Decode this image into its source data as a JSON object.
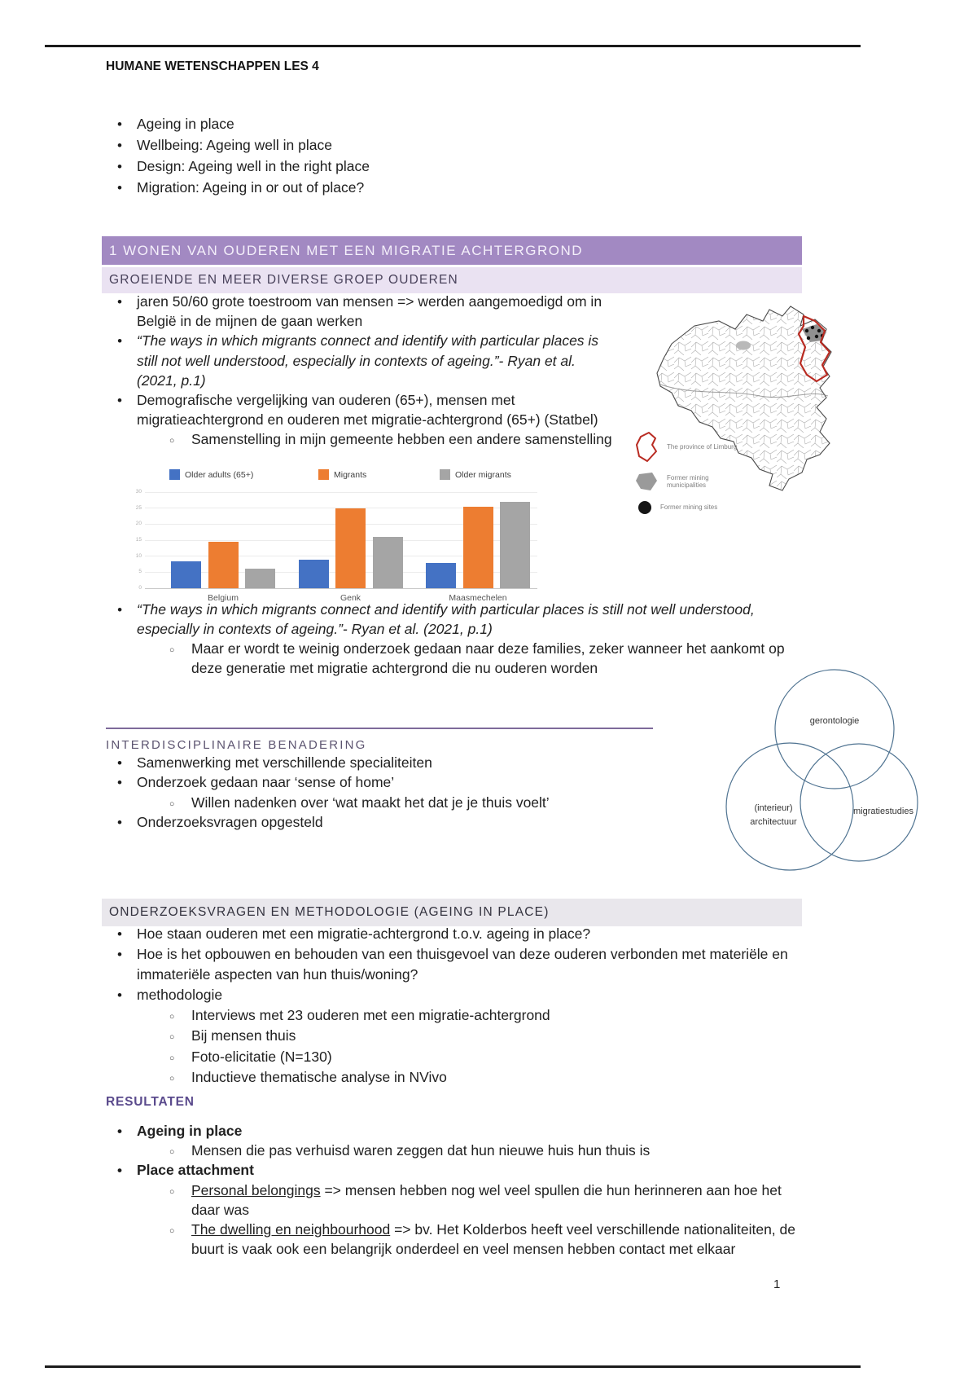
{
  "page": {
    "title": "HUMANE WETENSCHAPPEN LES 4",
    "page_number": "1"
  },
  "colors": {
    "banner_purple": "#a289c2",
    "banner_light_purple": "#eae2f2",
    "banner_gray": "#e9e7ec",
    "heading_purple": "#5a4a8c",
    "bar_blue": "#4472c4",
    "bar_orange": "#ed7d31",
    "bar_gray": "#a5a5a5",
    "map_region_red": "#b92b22"
  },
  "intro": {
    "items": [
      {
        "level": 1,
        "lines": [
          "Ageing in place"
        ]
      },
      {
        "level": 1,
        "lines": [
          "Wellbeing: Ageing well in place"
        ]
      },
      {
        "level": 1,
        "lines": [
          "Design: Ageing well in the right place"
        ]
      },
      {
        "level": 1,
        "lines": [
          "Migration: Ageing in or out of place?"
        ]
      }
    ]
  },
  "section1": {
    "banner": "1 WONEN VAN OUDEREN MET EEN MIGRATIE ACHTERGROND",
    "subbanner": "GROEIENDE EN MEER DIVERSE GROEP OUDEREN",
    "items": [
      {
        "level": 1,
        "lines": [
          "jaren 50/60 grote toestroom van mensen => werden aangemoedigd om in",
          "België in de mijnen de gaan werken"
        ]
      },
      {
        "level": 1,
        "italic": true,
        "lines": [
          "“The ways in which migrants connect and identify with particular places is",
          "still not well understood, especially in contexts of ageing.”- Ryan et al.",
          "(2021, p.1)"
        ]
      },
      {
        "level": 1,
        "lines": [
          "Demografische vergelijking van ouderen (65+), mensen met",
          "migratieachtergrond en ouderen met migratie-achtergrond (65+) (Statbel)"
        ]
      },
      {
        "level": 2,
        "lines": [
          "Samenstelling in mijn gemeente hebben een andere samenstelling"
        ]
      }
    ],
    "quote_items": [
      {
        "level": 1,
        "italic": true,
        "lines": [
          "“The ways in which migrants connect and identify with particular places is still not well understood,",
          "especially in contexts of ageing.”- Ryan et al. (2021, p.1)"
        ]
      },
      {
        "level": 2,
        "lines": [
          "Maar er wordt te weinig onderzoek gedaan naar deze families, zeker wanneer het aankomt op",
          "deze generatie met migratie achtergrond die nu ouderen worden"
        ]
      }
    ]
  },
  "chart_data": {
    "type": "bar",
    "title": "",
    "categories": [
      "Belgium",
      "Genk",
      "Maasmechelen"
    ],
    "series": [
      {
        "name": "Older adults (65+)",
        "color": "#4472c4",
        "values": [
          8.5,
          9,
          8
        ]
      },
      {
        "name": "Migrants",
        "color": "#ed7d31",
        "values": [
          14.5,
          25,
          25.5
        ]
      },
      {
        "name": "Older migrants",
        "color": "#a5a5a5",
        "values": [
          6,
          16,
          27
        ]
      }
    ],
    "ylim": [
      0,
      30
    ],
    "yticks": [
      0,
      5,
      10,
      15,
      20,
      25,
      30
    ],
    "grid": true,
    "legend_position": "top",
    "xlabel": "",
    "ylabel": ""
  },
  "map": {
    "legend": [
      {
        "icon": "red-outline",
        "label": "The province of Limburg"
      },
      {
        "icon": "gray-region",
        "label": "Former mining municipalities"
      },
      {
        "icon": "black-dot",
        "label": "Former mining sites"
      }
    ]
  },
  "interdisciplinary": {
    "heading": "INTERDISCIPLINAIRE BENADERING",
    "items": [
      {
        "level": 1,
        "lines": [
          "Samenwerking met verschillende specialiteiten"
        ]
      },
      {
        "level": 1,
        "lines": [
          "Onderzoek gedaan naar ‘sense of home’"
        ]
      },
      {
        "level": 2,
        "lines": [
          "Willen nadenken over ‘wat maakt het dat je je thuis voelt’"
        ]
      },
      {
        "level": 1,
        "lines": [
          "Onderzoeksvragen opgesteld"
        ]
      }
    ]
  },
  "venn": {
    "top": "gerontologie",
    "left_line1": "(interieur)",
    "left_line2": "architectuur",
    "right": "migratiestudies"
  },
  "methodology": {
    "banner": "ONDERZOEKSVRAGEN EN METHODOLOGIE (AGEING IN PLACE)",
    "items": [
      {
        "level": 1,
        "lines": [
          "Hoe staan ouderen met een migratie-achtergrond t.o.v. ageing in place?"
        ]
      },
      {
        "level": 1,
        "lines": [
          "Hoe is het opbouwen en behouden van een thuisgevoel van deze ouderen verbonden met materiële en",
          "immateriële aspecten van hun thuis/woning?"
        ]
      },
      {
        "level": 1,
        "lines": [
          "methodologie"
        ]
      },
      {
        "level": 2,
        "lines": [
          "Interviews met 23 ouderen met een migratie-achtergrond"
        ]
      },
      {
        "level": 2,
        "lines": [
          "Bij mensen thuis"
        ]
      },
      {
        "level": 2,
        "lines": [
          "Foto-elicitatie (N=130)"
        ]
      },
      {
        "level": 2,
        "lines": [
          "Inductieve thematische analyse in NVivo"
        ]
      }
    ]
  },
  "results": {
    "heading": "RESULTATEN",
    "items": [
      {
        "level": 1,
        "bold": true,
        "lines": [
          "Ageing in place"
        ]
      },
      {
        "level": 2,
        "lines": [
          "Mensen die pas verhuisd waren zeggen dat hun nieuwe huis hun thuis is"
        ]
      },
      {
        "level": 1,
        "bold": true,
        "lines": [
          "Place attachment"
        ]
      },
      {
        "level": 2,
        "lines": [
          [
            {
              "t": "Personal belongings",
              "u": true
            },
            {
              "t": " => mensen hebben nog wel veel spullen die hun herinneren aan hoe het"
            }
          ],
          "daar was"
        ]
      },
      {
        "level": 2,
        "lines": [
          [
            {
              "t": "The dwelling en neighbourhood",
              "u": true
            },
            {
              "t": " => bv. Het Kolderbos heeft veel verschillende nationaliteiten, de"
            }
          ],
          "buurt is vaak ook een belangrijk onderdeel en veel mensen hebben contact met elkaar"
        ]
      }
    ]
  }
}
